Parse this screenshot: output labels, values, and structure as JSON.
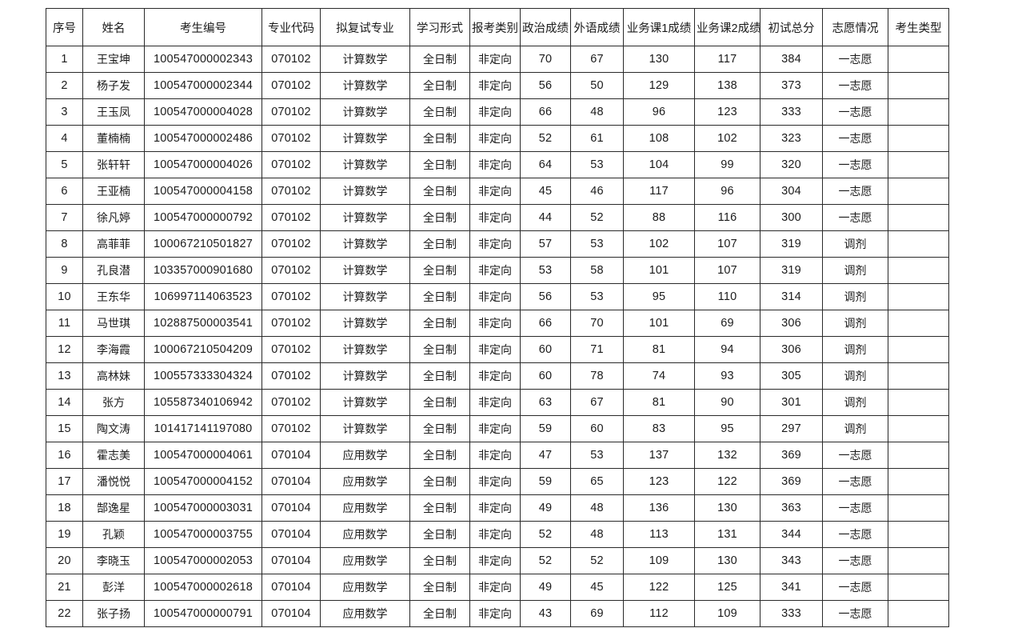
{
  "page": {
    "background": "#ffffff",
    "border_color": "#2a2a2a",
    "text_color": "#1b1b1b"
  },
  "table": {
    "columns": [
      "序号",
      "姓名",
      "考生编号",
      "专业代码",
      "拟复试专业",
      "学习形式",
      "报考类别",
      "政治成绩",
      "外语成绩",
      "业务课1成绩",
      "业务课2成绩",
      "初试总分",
      "志愿情况",
      "考生类型"
    ],
    "rows": [
      [
        "1",
        "王宝坤",
        "100547000002343",
        "070102",
        "计算数学",
        "全日制",
        "非定向",
        "70",
        "67",
        "130",
        "117",
        "384",
        "一志愿",
        ""
      ],
      [
        "2",
        "杨子发",
        "100547000002344",
        "070102",
        "计算数学",
        "全日制",
        "非定向",
        "56",
        "50",
        "129",
        "138",
        "373",
        "一志愿",
        ""
      ],
      [
        "3",
        "王玉凤",
        "100547000004028",
        "070102",
        "计算数学",
        "全日制",
        "非定向",
        "66",
        "48",
        "96",
        "123",
        "333",
        "一志愿",
        ""
      ],
      [
        "4",
        "董楠楠",
        "100547000002486",
        "070102",
        "计算数学",
        "全日制",
        "非定向",
        "52",
        "61",
        "108",
        "102",
        "323",
        "一志愿",
        ""
      ],
      [
        "5",
        "张轩轩",
        "100547000004026",
        "070102",
        "计算数学",
        "全日制",
        "非定向",
        "64",
        "53",
        "104",
        "99",
        "320",
        "一志愿",
        ""
      ],
      [
        "6",
        "王亚楠",
        "100547000004158",
        "070102",
        "计算数学",
        "全日制",
        "非定向",
        "45",
        "46",
        "117",
        "96",
        "304",
        "一志愿",
        ""
      ],
      [
        "7",
        "徐凡婷",
        "100547000000792",
        "070102",
        "计算数学",
        "全日制",
        "非定向",
        "44",
        "52",
        "88",
        "116",
        "300",
        "一志愿",
        ""
      ],
      [
        "8",
        "高菲菲",
        "100067210501827",
        "070102",
        "计算数学",
        "全日制",
        "非定向",
        "57",
        "53",
        "102",
        "107",
        "319",
        "调剂",
        ""
      ],
      [
        "9",
        "孔良潜",
        "103357000901680",
        "070102",
        "计算数学",
        "全日制",
        "非定向",
        "53",
        "58",
        "101",
        "107",
        "319",
        "调剂",
        ""
      ],
      [
        "10",
        "王东华",
        "106997114063523",
        "070102",
        "计算数学",
        "全日制",
        "非定向",
        "56",
        "53",
        "95",
        "110",
        "314",
        "调剂",
        ""
      ],
      [
        "11",
        "马世琪",
        "102887500003541",
        "070102",
        "计算数学",
        "全日制",
        "非定向",
        "66",
        "70",
        "101",
        "69",
        "306",
        "调剂",
        ""
      ],
      [
        "12",
        "李海霞",
        "100067210504209",
        "070102",
        "计算数学",
        "全日制",
        "非定向",
        "60",
        "71",
        "81",
        "94",
        "306",
        "调剂",
        ""
      ],
      [
        "13",
        "高林妹",
        "100557333304324",
        "070102",
        "计算数学",
        "全日制",
        "非定向",
        "60",
        "78",
        "74",
        "93",
        "305",
        "调剂",
        ""
      ],
      [
        "14",
        "张方",
        "105587340106942",
        "070102",
        "计算数学",
        "全日制",
        "非定向",
        "63",
        "67",
        "81",
        "90",
        "301",
        "调剂",
        ""
      ],
      [
        "15",
        "陶文涛",
        "101417141197080",
        "070102",
        "计算数学",
        "全日制",
        "非定向",
        "59",
        "60",
        "83",
        "95",
        "297",
        "调剂",
        ""
      ],
      [
        "16",
        "霍志美",
        "100547000004061",
        "070104",
        "应用数学",
        "全日制",
        "非定向",
        "47",
        "53",
        "137",
        "132",
        "369",
        "一志愿",
        ""
      ],
      [
        "17",
        "潘悦悦",
        "100547000004152",
        "070104",
        "应用数学",
        "全日制",
        "非定向",
        "59",
        "65",
        "123",
        "122",
        "369",
        "一志愿",
        ""
      ],
      [
        "18",
        "郜逸星",
        "100547000003031",
        "070104",
        "应用数学",
        "全日制",
        "非定向",
        "49",
        "48",
        "136",
        "130",
        "363",
        "一志愿",
        ""
      ],
      [
        "19",
        "孔颖",
        "100547000003755",
        "070104",
        "应用数学",
        "全日制",
        "非定向",
        "52",
        "48",
        "113",
        "131",
        "344",
        "一志愿",
        ""
      ],
      [
        "20",
        "李晓玉",
        "100547000002053",
        "070104",
        "应用数学",
        "全日制",
        "非定向",
        "52",
        "52",
        "109",
        "130",
        "343",
        "一志愿",
        ""
      ],
      [
        "21",
        "彭洋",
        "100547000002618",
        "070104",
        "应用数学",
        "全日制",
        "非定向",
        "49",
        "45",
        "122",
        "125",
        "341",
        "一志愿",
        ""
      ],
      [
        "22",
        "张子扬",
        "100547000000791",
        "070104",
        "应用数学",
        "全日制",
        "非定向",
        "43",
        "69",
        "112",
        "109",
        "333",
        "一志愿",
        ""
      ]
    ]
  }
}
